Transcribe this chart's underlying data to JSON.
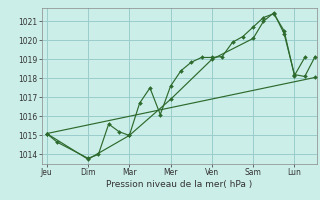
{
  "background_color": "#cceee8",
  "grid_color": "#99cccc",
  "line_color": "#2d6a2d",
  "marker_color": "#2d6a2d",
  "xlabel": "Pression niveau de la mer( hPa )",
  "ylim": [
    1013.5,
    1021.7
  ],
  "yticks": [
    1014,
    1015,
    1016,
    1017,
    1018,
    1019,
    1020,
    1021
  ],
  "day_labels": [
    "Jeu",
    "Dim",
    "Mar",
    "Mer",
    "Ven",
    "Sam",
    "Lun"
  ],
  "day_positions": [
    0,
    24,
    48,
    72,
    96,
    120,
    144
  ],
  "xlim": [
    -3,
    157
  ],
  "series1": [
    [
      0,
      1015.1
    ],
    [
      6,
      1014.65
    ],
    [
      24,
      1013.8
    ],
    [
      30,
      1014.0
    ],
    [
      36,
      1015.6
    ],
    [
      42,
      1015.2
    ],
    [
      48,
      1015.0
    ],
    [
      54,
      1016.7
    ],
    [
      60,
      1017.5
    ],
    [
      66,
      1016.1
    ],
    [
      72,
      1017.6
    ],
    [
      78,
      1018.4
    ],
    [
      84,
      1018.85
    ],
    [
      90,
      1019.1
    ],
    [
      96,
      1019.1
    ],
    [
      102,
      1019.15
    ],
    [
      108,
      1019.9
    ],
    [
      114,
      1020.2
    ],
    [
      120,
      1020.7
    ],
    [
      126,
      1021.2
    ],
    [
      132,
      1021.4
    ],
    [
      138,
      1020.5
    ],
    [
      144,
      1018.15
    ],
    [
      150,
      1019.1
    ]
  ],
  "series2": [
    [
      0,
      1015.1
    ],
    [
      24,
      1013.75
    ],
    [
      48,
      1015.0
    ],
    [
      72,
      1016.9
    ],
    [
      96,
      1019.0
    ],
    [
      120,
      1020.1
    ],
    [
      126,
      1021.0
    ],
    [
      132,
      1021.45
    ],
    [
      138,
      1020.35
    ],
    [
      144,
      1018.2
    ],
    [
      150,
      1018.1
    ],
    [
      156,
      1019.15
    ]
  ],
  "series3": [
    [
      0,
      1015.1
    ],
    [
      156,
      1018.05
    ]
  ]
}
